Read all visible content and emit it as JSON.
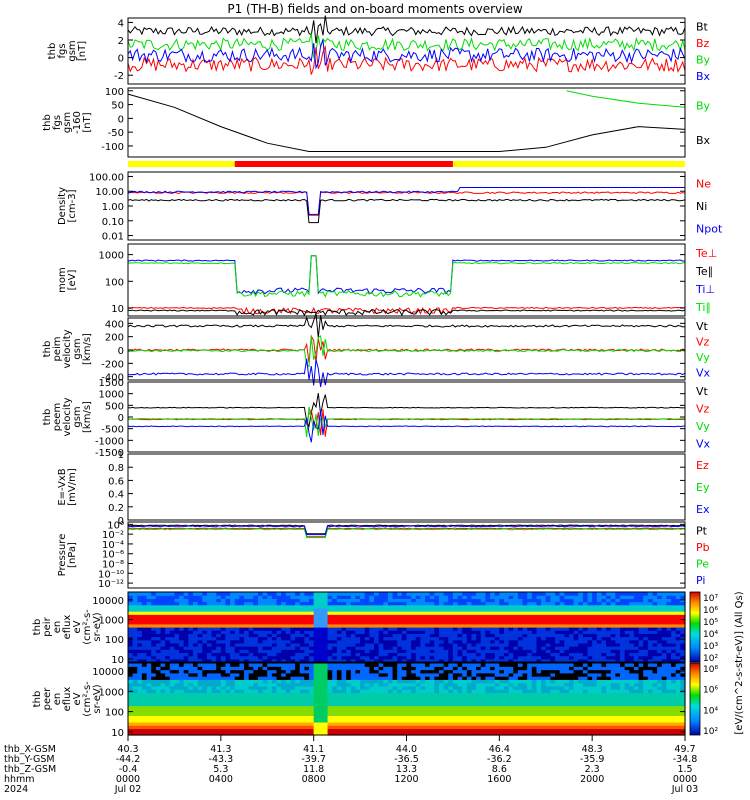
{
  "title": "P1 (TH-B) fields and on-board moments overview",
  "colors": {
    "black": "#000000",
    "red": "#ff0000",
    "green": "#00dd00",
    "blue": "#0000ff",
    "yellow": "#ffff00"
  },
  "chart_data": [
    {
      "type": "line",
      "id": "fgs",
      "ylabel": [
        "thb",
        "fgs",
        "gsm",
        "[nT]"
      ],
      "ylim": [
        -3,
        4.5
      ],
      "yticks": [
        4,
        2,
        0,
        -2
      ],
      "legend": [
        {
          "name": "Bt",
          "color": "#000000"
        },
        {
          "name": "Bz",
          "color": "#ff0000"
        },
        {
          "name": "By",
          "color": "#00dd00"
        },
        {
          "name": "Bx",
          "color": "#0000ff"
        }
      ],
      "series": [
        {
          "name": "Bt",
          "color": "#000000",
          "baseline": 3.0,
          "noise": 0.5
        },
        {
          "name": "By",
          "color": "#00dd00",
          "baseline": 1.5,
          "noise": 0.7
        },
        {
          "name": "Bz",
          "color": "#ff0000",
          "baseline": -0.8,
          "noise": 0.8
        },
        {
          "name": "Bx",
          "color": "#0000ff",
          "baseline": 0.3,
          "noise": 0.8
        }
      ]
    },
    {
      "type": "line",
      "id": "fgs_hi",
      "ylabel": [
        "thb",
        "fgs",
        "gsm",
        "-160",
        "[nT]"
      ],
      "ylim": [
        -140,
        110
      ],
      "yticks": [
        100,
        50,
        0,
        -50,
        -100
      ],
      "legend": [
        {
          "name": "By",
          "color": "#00dd00"
        },
        {
          "name": "Bx",
          "color": "#000000"
        }
      ],
      "series": [
        {
          "name": "Bx",
          "color": "#000000",
          "points": [
            [
              0,
              88
            ],
            [
              2,
              40
            ],
            [
              4,
              -30
            ],
            [
              6,
              -90
            ],
            [
              7.8,
              -120
            ],
            [
              12,
              -120
            ],
            [
              16,
              -120
            ],
            [
              18,
              -105
            ],
            [
              20,
              -60
            ],
            [
              22,
              -30
            ],
            [
              24,
              -40
            ]
          ]
        },
        {
          "name": "By",
          "color": "#00dd00",
          "points": [
            [
              18.9,
              100
            ],
            [
              20,
              80
            ],
            [
              22,
              55
            ],
            [
              24,
              40
            ]
          ]
        }
      ]
    },
    {
      "type": "line",
      "id": "density",
      "ylog": true,
      "ylabel": [
        "Density",
        "[cm-3]"
      ],
      "ylim": [
        0.005,
        200
      ],
      "yticks": [
        100,
        10,
        1,
        0.1,
        0.01
      ],
      "ytick_labels": [
        "100.00",
        "10.00",
        "1.00",
        "0.10",
        "0.01"
      ],
      "legend": [
        {
          "name": "Ne",
          "color": "#ff0000"
        },
        {
          "name": "Ni",
          "color": "#000000"
        },
        {
          "name": "Npot",
          "color": "#0000ff"
        }
      ],
      "series": [
        {
          "name": "Ne",
          "color": "#ff0000",
          "baseline": 8
        },
        {
          "name": "Npot",
          "color": "#0000ff",
          "baseline": 9
        },
        {
          "name": "Ni",
          "color": "#000000",
          "baseline": 2.5
        }
      ]
    },
    {
      "type": "line",
      "id": "moments",
      "ylog": true,
      "ylabel": [
        "mom",
        "[eV]"
      ],
      "ylim": [
        5,
        2500
      ],
      "yticks": [
        1000,
        100,
        10
      ],
      "legend": [
        {
          "name": "Te⊥",
          "color": "#ff0000"
        },
        {
          "name": "Te∥",
          "color": "#000000"
        },
        {
          "name": "Ti⊥",
          "color": "#0000ff"
        },
        {
          "name": "Ti∥",
          "color": "#00dd00"
        }
      ],
      "series": [
        {
          "name": "Ti⊥",
          "color": "#0000ff",
          "baseline": 600,
          "low": 45
        },
        {
          "name": "Ti∥",
          "color": "#00dd00",
          "baseline": 480,
          "low": 35
        },
        {
          "name": "Te⊥",
          "color": "#ff0000",
          "baseline": 10,
          "low": 8
        },
        {
          "name": "Te∥",
          "color": "#000000",
          "baseline": 8,
          "low": 7
        }
      ]
    },
    {
      "type": "line",
      "id": "peim",
      "ylabel": [
        "thb",
        "peim",
        "velocity",
        "gsm",
        "[km/s]"
      ],
      "ylim": [
        -450,
        480
      ],
      "yticks": [
        400,
        200,
        0,
        -200,
        -400
      ],
      "legend": [
        {
          "name": "Vt",
          "color": "#000000"
        },
        {
          "name": "Vz",
          "color": "#ff0000"
        },
        {
          "name": "Vy",
          "color": "#00dd00"
        },
        {
          "name": "Vx",
          "color": "#0000ff"
        }
      ],
      "series": [
        {
          "name": "Vt",
          "color": "#000000",
          "baseline": 360
        },
        {
          "name": "Vz",
          "color": "#ff0000",
          "baseline": 0
        },
        {
          "name": "Vy",
          "color": "#00dd00",
          "baseline": -10
        },
        {
          "name": "Vx",
          "color": "#0000ff",
          "baseline": -360
        }
      ]
    },
    {
      "type": "line",
      "id": "peem",
      "ylabel": [
        "thb",
        "peem",
        "velocity",
        "gsm",
        "[km/s]"
      ],
      "ylim": [
        -1500,
        1500
      ],
      "yticks": [
        1500,
        1000,
        500,
        0,
        -500,
        -1000,
        -1500
      ],
      "legend": [
        {
          "name": "Vt",
          "color": "#000000"
        },
        {
          "name": "Vz",
          "color": "#ff0000"
        },
        {
          "name": "Vy",
          "color": "#00dd00"
        },
        {
          "name": "Vx",
          "color": "#0000ff"
        }
      ],
      "series": [
        {
          "name": "Vt",
          "color": "#000000",
          "baseline": 400
        },
        {
          "name": "Vz",
          "color": "#ff0000",
          "baseline": -100
        },
        {
          "name": "Vy",
          "color": "#00dd00",
          "baseline": -80
        },
        {
          "name": "Vx",
          "color": "#0000ff",
          "baseline": -400
        }
      ]
    },
    {
      "type": "line",
      "id": "efield",
      "ylabel": [
        "E=-VxB",
        "[mV/m]"
      ],
      "ylim": [
        0,
        1
      ],
      "yticks": [
        1.0,
        0.8,
        0.6,
        0.4,
        0.2,
        0.0
      ],
      "legend": [
        {
          "name": "Ez",
          "color": "#ff0000"
        },
        {
          "name": "Ey",
          "color": "#00dd00"
        },
        {
          "name": "Ex",
          "color": "#0000ff"
        }
      ],
      "series": []
    },
    {
      "type": "line",
      "id": "pressure",
      "ylog": true,
      "ylabel": [
        "Pressure",
        "[nPa]"
      ],
      "ylim": [
        1e-13,
        3
      ],
      "yticks": [
        1,
        0.01,
        0.0001,
        1e-06,
        1e-08,
        1e-10,
        1e-12
      ],
      "ytick_labels": [
        "10⁰",
        "10⁻²",
        "10⁻⁴",
        "10⁻⁶",
        "10⁻⁸",
        "10⁻¹⁰",
        "10⁻¹²"
      ],
      "legend": [
        {
          "name": "Pt",
          "color": "#000000"
        },
        {
          "name": "Pb",
          "color": "#ff0000"
        },
        {
          "name": "Pe",
          "color": "#00dd00"
        },
        {
          "name": "Pi",
          "color": "#0000ff"
        }
      ],
      "series": [
        {
          "name": "Pt",
          "color": "#000000",
          "baseline": 0.6
        },
        {
          "name": "Pb",
          "color": "#ff0000",
          "baseline": 0.15
        },
        {
          "name": "Pe",
          "color": "#00dd00",
          "baseline": 0.1
        },
        {
          "name": "Pi",
          "color": "#0000ff",
          "baseline": 0.4
        }
      ]
    },
    {
      "type": "heatmap",
      "id": "peir",
      "ylabel": [
        "thb",
        "peir",
        "en",
        "eflux",
        "eV",
        "(cm²-s-",
        "sr-eV)"
      ],
      "ylog": true,
      "ylim": [
        7,
        25000
      ],
      "yticks": [
        10000,
        1000,
        100,
        10
      ]
    },
    {
      "type": "heatmap",
      "id": "peer",
      "ylabel": [
        "thb",
        "peer",
        "en",
        "eflux",
        "eV",
        "(cm²-s-",
        "sr-eV)"
      ],
      "ylog": true,
      "ylim": [
        7,
        25000
      ],
      "yticks": [
        10000,
        1000,
        100,
        10
      ]
    }
  ],
  "colorbar": {
    "label": "[eV/(cm^2-s-str-eV)] (All Qs)",
    "ticks_upper": [
      "10⁷",
      "10⁶",
      "10⁵",
      "10⁴",
      "10³",
      "10²"
    ],
    "ticks_lower": [
      "10⁸",
      "10⁶",
      "10⁴",
      "10²"
    ]
  },
  "yellow_bar": {
    "red_from_hours": 4.6,
    "red_to_hours": 14.0
  },
  "xaxis": {
    "range_hours": [
      0,
      24
    ],
    "tick_hours": [
      0,
      4,
      8,
      12,
      16,
      20,
      24
    ],
    "rows": [
      {
        "label": "thb_X-GSM",
        "values": [
          "40.3",
          "41.3",
          "41.1",
          "44.0",
          "46.4",
          "48.3",
          "49.7"
        ]
      },
      {
        "label": "thb_Y-GSM",
        "values": [
          "-44.2",
          "-43.3",
          "-39.7",
          "-36.5",
          "-36.2",
          "-35.9",
          "-34.8"
        ]
      },
      {
        "label": "thb_Z-GSM",
        "values": [
          "-0.4",
          "5.3",
          "11.8",
          "13.3",
          "8.6",
          "2.3",
          "1.5"
        ]
      },
      {
        "label": "hhmm",
        "values": [
          "0000",
          "0400",
          "0800",
          "1200",
          "1600",
          "2000",
          "0000"
        ]
      },
      {
        "label": "2024",
        "values": [
          "Jul 02",
          "",
          "",
          "",
          "",
          "",
          "Jul 03"
        ]
      }
    ]
  }
}
